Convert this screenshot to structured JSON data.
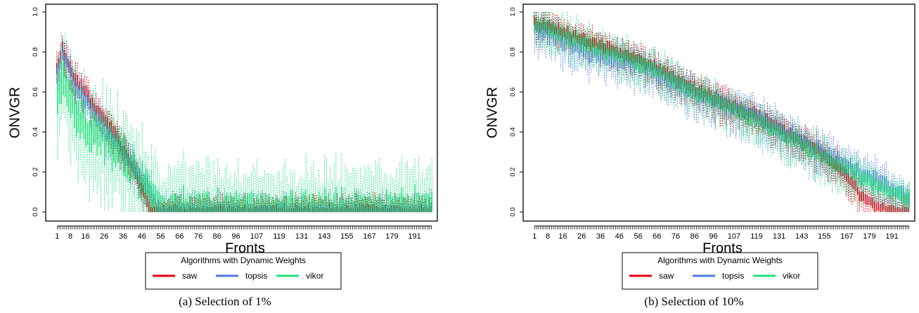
{
  "chart_data": [
    {
      "type": "boxplot",
      "caption": "(a) Selection of 1%",
      "xlabel": "Fronts",
      "ylabel": "ONVGR",
      "ylim": [
        0,
        1
      ],
      "yticks": [
        "0.0",
        "0.2",
        "0.4",
        "0.6",
        "0.8",
        "1.0"
      ],
      "xticks": [
        "1",
        "8",
        "16",
        "26",
        "36",
        "46",
        "56",
        "66",
        "76",
        "86",
        "96",
        "107",
        "119",
        "131",
        "143",
        "155",
        "167",
        "179",
        "191"
      ],
      "x_count": 200,
      "legend": {
        "title": "Algorithms with Dynamic Weights",
        "position": "bottom",
        "items": [
          {
            "name": "saw",
            "color": "#e8000b"
          },
          {
            "name": "topsis",
            "color": "#4a78e0"
          },
          {
            "name": "vikor",
            "color": "#22e07a"
          }
        ]
      },
      "series": [
        {
          "name": "saw",
          "color": "#e8000b",
          "median_profile": [
            [
              1,
              0.72
            ],
            [
              4,
              0.83
            ],
            [
              10,
              0.68
            ],
            [
              20,
              0.55
            ],
            [
              30,
              0.42
            ],
            [
              40,
              0.26
            ],
            [
              46,
              0.13
            ],
            [
              50,
              0.04
            ],
            [
              52,
              0
            ],
            [
              200,
              0
            ]
          ],
          "spread": 0.04,
          "outlier_max": 0.95
        },
        {
          "name": "topsis",
          "color": "#4a78e0",
          "median_profile": [
            [
              1,
              0.7
            ],
            [
              4,
              0.8
            ],
            [
              10,
              0.65
            ],
            [
              20,
              0.5
            ],
            [
              30,
              0.38
            ],
            [
              40,
              0.25
            ],
            [
              50,
              0.12
            ],
            [
              55,
              0.02
            ],
            [
              57,
              0
            ],
            [
              200,
              0
            ]
          ],
          "spread": 0.05,
          "outlier_max": 0.9
        },
        {
          "name": "vikor",
          "color": "#22e07a",
          "median_profile": [
            [
              1,
              0.6
            ],
            [
              4,
              0.7
            ],
            [
              10,
              0.5
            ],
            [
              20,
              0.42
            ],
            [
              30,
              0.34
            ],
            [
              40,
              0.22
            ],
            [
              50,
              0.1
            ],
            [
              55,
              0.02
            ],
            [
              58,
              0.005
            ],
            [
              200,
              0.005
            ]
          ],
          "spread": 0.12,
          "outlier_max": 0.9
        }
      ]
    },
    {
      "type": "boxplot",
      "caption": "(b) Selection of 10%",
      "xlabel": "Fronts",
      "ylabel": "ONVGR",
      "ylim": [
        0,
        1
      ],
      "yticks": [
        "0.0",
        "0.2",
        "0.4",
        "0.6",
        "0.8",
        "1.0"
      ],
      "xticks": [
        "1",
        "8",
        "16",
        "26",
        "36",
        "46",
        "56",
        "66",
        "76",
        "86",
        "96",
        "107",
        "119",
        "131",
        "143",
        "155",
        "167",
        "179",
        "191"
      ],
      "x_count": 200,
      "legend": {
        "title": "Algorithms with Dynamic Weights",
        "position": "bottom",
        "items": [
          {
            "name": "saw",
            "color": "#e8000b"
          },
          {
            "name": "topsis",
            "color": "#4a78e0"
          },
          {
            "name": "vikor",
            "color": "#22e07a"
          }
        ]
      },
      "series": [
        {
          "name": "saw",
          "color": "#e8000b",
          "median_profile": [
            [
              1,
              0.95
            ],
            [
              8,
              0.93
            ],
            [
              30,
              0.85
            ],
            [
              60,
              0.75
            ],
            [
              90,
              0.6
            ],
            [
              120,
              0.48
            ],
            [
              150,
              0.32
            ],
            [
              165,
              0.22
            ],
            [
              175,
              0.08
            ],
            [
              185,
              0.02
            ],
            [
              200,
              0
            ]
          ],
          "spread": 0.04,
          "outlier_max": 1.0
        },
        {
          "name": "topsis",
          "color": "#4a78e0",
          "median_profile": [
            [
              1,
              0.93
            ],
            [
              8,
              0.9
            ],
            [
              30,
              0.8
            ],
            [
              60,
              0.72
            ],
            [
              90,
              0.58
            ],
            [
              120,
              0.47
            ],
            [
              150,
              0.32
            ],
            [
              170,
              0.22
            ],
            [
              190,
              0.12
            ],
            [
              200,
              0.08
            ]
          ],
          "spread": 0.05,
          "outlier_max": 1.0
        },
        {
          "name": "vikor",
          "color": "#22e07a",
          "median_profile": [
            [
              1,
              0.94
            ],
            [
              8,
              0.92
            ],
            [
              30,
              0.84
            ],
            [
              60,
              0.74
            ],
            [
              90,
              0.59
            ],
            [
              120,
              0.46
            ],
            [
              150,
              0.3
            ],
            [
              170,
              0.2
            ],
            [
              190,
              0.1
            ],
            [
              200,
              0.06
            ]
          ],
          "spread": 0.05,
          "outlier_max": 1.0
        }
      ]
    }
  ]
}
